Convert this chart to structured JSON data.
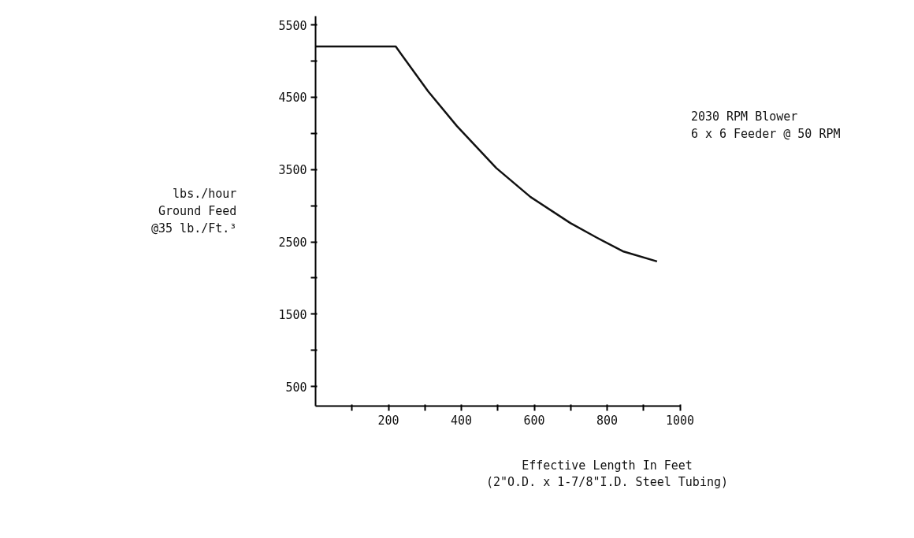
{
  "chart_data": {
    "type": "line",
    "xlabel": "Effective Length In Feet\n(2\"O.D. x 1-7/8\"I.D. Steel Tubing)",
    "ylabel": "lbs./hour\nGround Feed\n@35 lb./Ft.³",
    "annotations": [
      "2030 RPM Blower\n6 x 6 Feeder @ 50 RPM"
    ],
    "x": [
      0,
      220,
      309,
      388,
      496,
      590,
      699,
      771,
      843,
      937
    ],
    "series": [
      {
        "color": "#111111",
        "values": [
          5200,
          5200,
          4580,
          4100,
          3520,
          3120,
          2760,
          2560,
          2370,
          2230
        ]
      }
    ],
    "xlim": [
      0,
      1000
    ],
    "ylim": [
      230,
      5620
    ],
    "xticks": [
      {
        "value": 100,
        "label": null
      },
      200,
      {
        "value": 300,
        "label": null
      },
      400,
      {
        "value": 500,
        "label": null
      },
      600,
      {
        "value": 700,
        "label": null
      },
      800,
      {
        "value": 900,
        "label": null
      },
      1000
    ],
    "yticks": [
      500,
      {
        "value": 1000,
        "label": null
      },
      1500,
      {
        "value": 2000,
        "label": null
      },
      2500,
      {
        "value": 3000,
        "label": null
      },
      3500,
      {
        "value": 4000,
        "label": null
      },
      4500,
      {
        "value": 5000,
        "label": null
      },
      5500
    ],
    "grid": false,
    "marker": "none",
    "line_style": "solid"
  }
}
